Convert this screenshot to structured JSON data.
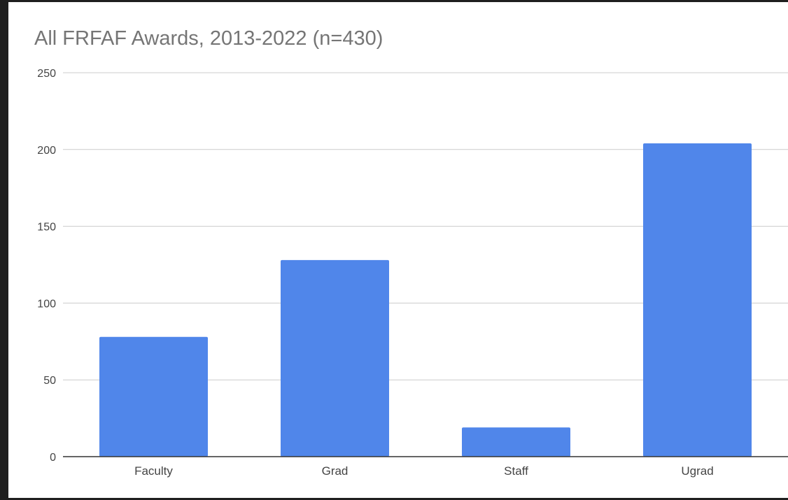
{
  "chart_data": {
    "type": "bar",
    "title": "All FRFAF Awards, 2013-2022 (n=430)",
    "categories": [
      "Faculty",
      "Grad",
      "Staff",
      "Ugrad"
    ],
    "values": [
      78,
      128,
      19,
      204
    ],
    "ylim": [
      0,
      250
    ],
    "yticks": [
      0,
      50,
      100,
      150,
      200,
      250
    ],
    "xlabel": "",
    "ylabel": "",
    "grid": true,
    "colors": {
      "bar": "#5086ea",
      "grid": "#cccccc",
      "baseline": "#333333",
      "text": "#444444",
      "title": "#757575"
    }
  }
}
